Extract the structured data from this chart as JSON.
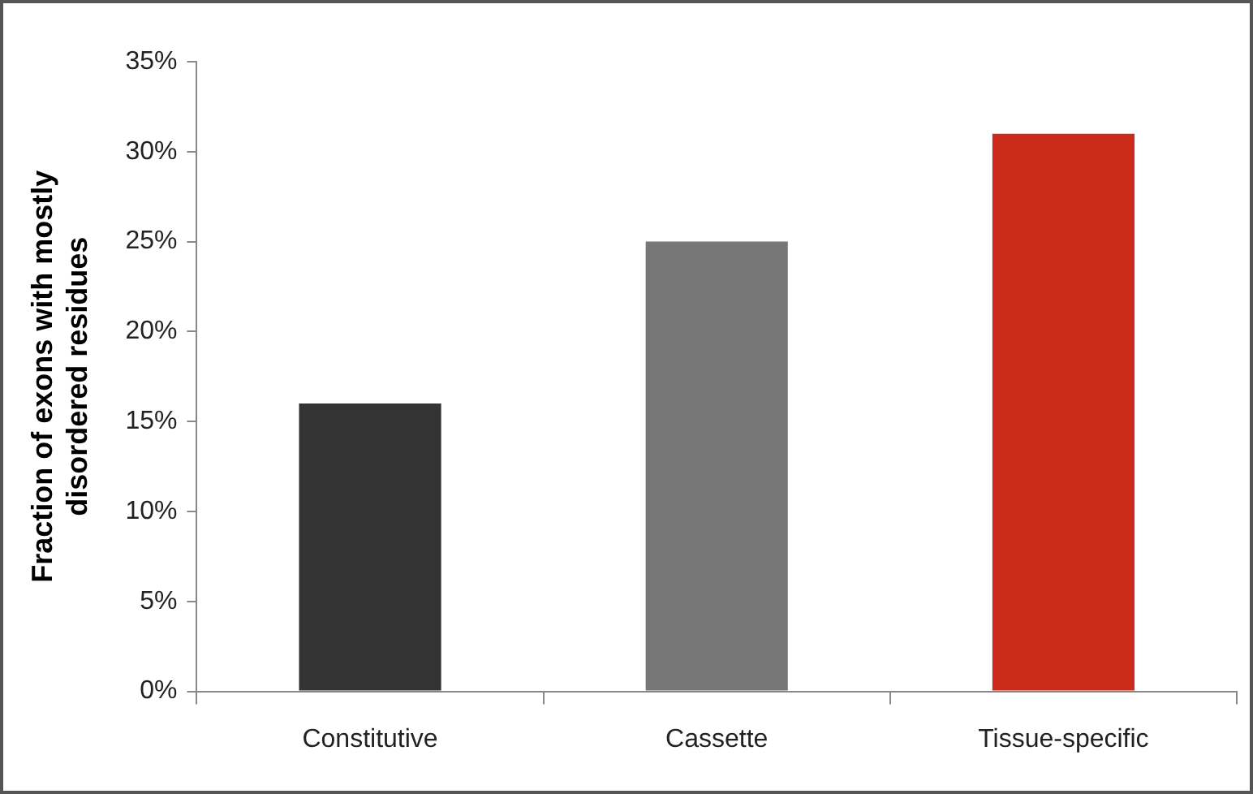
{
  "chart_data": {
    "type": "bar",
    "ylabel": "Fraction of exons with mostly\ndisordered residues",
    "categories": [
      "Constitutive",
      "Cassette",
      "Tissue-specific"
    ],
    "values": [
      16,
      25,
      31
    ],
    "colors": [
      "#333333",
      "#777777",
      "#cc2a1a"
    ],
    "ylim": [
      0,
      35
    ],
    "yticks": [
      {
        "value": 0,
        "label": "0%"
      },
      {
        "value": 5,
        "label": "5%"
      },
      {
        "value": 10,
        "label": "10%"
      },
      {
        "value": 15,
        "label": "15%"
      },
      {
        "value": 20,
        "label": "20%"
      },
      {
        "value": 25,
        "label": "25%"
      },
      {
        "value": 30,
        "label": "30%"
      },
      {
        "value": 35,
        "label": "35%"
      }
    ],
    "grid": false,
    "legend": false
  }
}
